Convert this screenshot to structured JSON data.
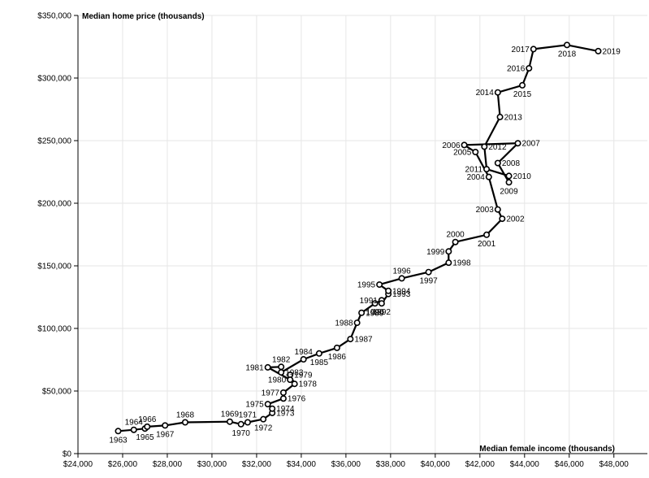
{
  "chart_data": {
    "type": "line",
    "xlabel": "Median female income (thousands)",
    "ylabel": "Median home price (thousands)",
    "xlim": [
      24000,
      49500
    ],
    "ylim": [
      0,
      350000
    ],
    "x_ticks": [
      24000,
      26000,
      28000,
      30000,
      32000,
      34000,
      36000,
      38000,
      40000,
      42000,
      44000,
      46000,
      48000
    ],
    "x_tick_labels": [
      "$24,000",
      "$26,000",
      "$28,000",
      "$30,000",
      "$32,000",
      "$34,000",
      "$36,000",
      "$38,000",
      "$40,000",
      "$42,000",
      "$44,000",
      "$46,000",
      "$48,000"
    ],
    "y_ticks": [
      0,
      50000,
      100000,
      150000,
      200000,
      250000,
      300000,
      350000
    ],
    "y_tick_labels": [
      "$0",
      "$50,000",
      "$100,000",
      "$150,000",
      "$200,000",
      "$250,000",
      "$300,000",
      "$350,000"
    ],
    "grid": true,
    "points": [
      {
        "label": "1963",
        "x": 25800,
        "y": 18000,
        "pos": "below"
      },
      {
        "label": "1964",
        "x": 26500,
        "y": 19000,
        "pos": "above"
      },
      {
        "label": "1965",
        "x": 27000,
        "y": 20000,
        "pos": "below"
      },
      {
        "label": "1966",
        "x": 27100,
        "y": 21500,
        "pos": "above"
      },
      {
        "label": "1967",
        "x": 27900,
        "y": 22500,
        "pos": "below"
      },
      {
        "label": "1968",
        "x": 28800,
        "y": 25000,
        "pos": "above"
      },
      {
        "label": "1969",
        "x": 30800,
        "y": 25500,
        "pos": "above"
      },
      {
        "label": "1970",
        "x": 31300,
        "y": 23500,
        "pos": "below"
      },
      {
        "label": "1971",
        "x": 31600,
        "y": 25000,
        "pos": "above"
      },
      {
        "label": "1972",
        "x": 32300,
        "y": 27500,
        "pos": "below"
      },
      {
        "label": "1973",
        "x": 32700,
        "y": 32500,
        "pos": "right"
      },
      {
        "label": "1974",
        "x": 32700,
        "y": 35900,
        "pos": "right"
      },
      {
        "label": "1975",
        "x": 32500,
        "y": 39500,
        "pos": "left"
      },
      {
        "label": "1976",
        "x": 33200,
        "y": 44000,
        "pos": "right"
      },
      {
        "label": "1977",
        "x": 33200,
        "y": 48700,
        "pos": "left"
      },
      {
        "label": "1978",
        "x": 33700,
        "y": 55700,
        "pos": "right"
      },
      {
        "label": "1979",
        "x": 33500,
        "y": 62900,
        "pos": "right"
      },
      {
        "label": "1980",
        "x": 33500,
        "y": 59000,
        "pos": "left"
      },
      {
        "label": "1981",
        "x": 32500,
        "y": 68900,
        "pos": "left"
      },
      {
        "label": "1982",
        "x": 33100,
        "y": 69300,
        "pos": "above"
      },
      {
        "label": "1983",
        "x": 33100,
        "y": 64900,
        "pos": "right"
      },
      {
        "label": "1984",
        "x": 34100,
        "y": 75300,
        "pos": "above"
      },
      {
        "label": "1985",
        "x": 34800,
        "y": 80000,
        "pos": "below"
      },
      {
        "label": "1986",
        "x": 35600,
        "y": 84500,
        "pos": "below"
      },
      {
        "label": "1987",
        "x": 36200,
        "y": 91500,
        "pos": "right"
      },
      {
        "label": "1988",
        "x": 36500,
        "y": 104500,
        "pos": "left"
      },
      {
        "label": "1989",
        "x": 36700,
        "y": 112500,
        "pos": "right"
      },
      {
        "label": "1990",
        "x": 37300,
        "y": 120000,
        "pos": "below"
      },
      {
        "label": "1991",
        "x": 37600,
        "y": 122500,
        "pos": "left"
      },
      {
        "label": "1992",
        "x": 37600,
        "y": 120000,
        "pos": "below"
      },
      {
        "label": "1993",
        "x": 37900,
        "y": 127500,
        "pos": "right"
      },
      {
        "label": "1994",
        "x": 37900,
        "y": 130000,
        "pos": "right"
      },
      {
        "label": "1995",
        "x": 37500,
        "y": 135000,
        "pos": "left"
      },
      {
        "label": "1996",
        "x": 38500,
        "y": 140000,
        "pos": "above"
      },
      {
        "label": "1997",
        "x": 39700,
        "y": 145000,
        "pos": "below"
      },
      {
        "label": "1998",
        "x": 40600,
        "y": 152500,
        "pos": "right"
      },
      {
        "label": "1999",
        "x": 40600,
        "y": 161500,
        "pos": "left"
      },
      {
        "label": "2000",
        "x": 40900,
        "y": 169000,
        "pos": "above"
      },
      {
        "label": "2001",
        "x": 42300,
        "y": 174800,
        "pos": "below"
      },
      {
        "label": "2002",
        "x": 43000,
        "y": 187600,
        "pos": "right"
      },
      {
        "label": "2003",
        "x": 42800,
        "y": 195000,
        "pos": "left"
      },
      {
        "label": "2004",
        "x": 42400,
        "y": 221000,
        "pos": "left"
      },
      {
        "label": "2005",
        "x": 41800,
        "y": 240900,
        "pos": "left"
      },
      {
        "label": "2006",
        "x": 41300,
        "y": 246500,
        "pos": "left"
      },
      {
        "label": "2007",
        "x": 43700,
        "y": 247900,
        "pos": "right"
      },
      {
        "label": "2008",
        "x": 42800,
        "y": 232100,
        "pos": "right"
      },
      {
        "label": "2009",
        "x": 43300,
        "y": 216700,
        "pos": "below"
      },
      {
        "label": "2010",
        "x": 43300,
        "y": 221800,
        "pos": "right"
      },
      {
        "label": "2011",
        "x": 42300,
        "y": 227200,
        "pos": "left"
      },
      {
        "label": "2012",
        "x": 42200,
        "y": 245200,
        "pos": "right"
      },
      {
        "label": "2013",
        "x": 42900,
        "y": 268900,
        "pos": "right"
      },
      {
        "label": "2014",
        "x": 42800,
        "y": 288500,
        "pos": "left"
      },
      {
        "label": "2015",
        "x": 43900,
        "y": 294200,
        "pos": "below"
      },
      {
        "label": "2016",
        "x": 44200,
        "y": 307800,
        "pos": "left"
      },
      {
        "label": "2017",
        "x": 44400,
        "y": 323100,
        "pos": "left"
      },
      {
        "label": "2018",
        "x": 45900,
        "y": 326400,
        "pos": "below"
      },
      {
        "label": "2019",
        "x": 47300,
        "y": 321500,
        "pos": "right"
      }
    ]
  }
}
